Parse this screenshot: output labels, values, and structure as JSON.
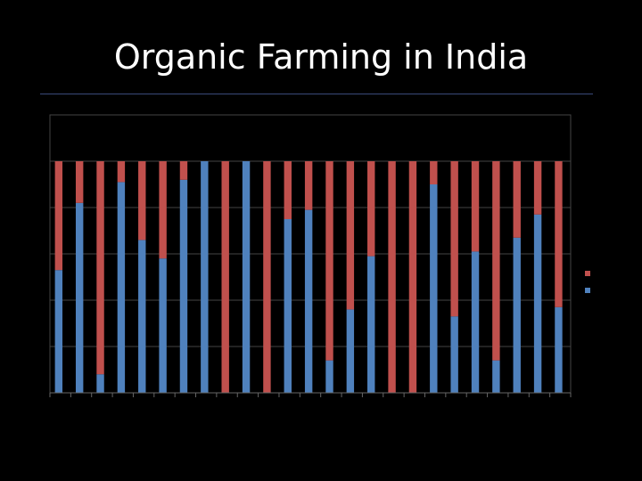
{
  "slide": {
    "title": "Organic Farming in India"
  },
  "chart_data": {
    "type": "bar",
    "stacked": "percent",
    "title": "Organic Farming in India",
    "xlabel": "",
    "ylabel": "",
    "ylim": [
      0,
      1.2
    ],
    "grid": true,
    "legend_position": "right",
    "series": [
      {
        "color": "#4f81bd",
        "values": [
          0.53,
          0.82,
          0.08,
          0.91,
          0.66,
          0.58,
          0.92,
          1.0,
          0.0,
          1.0,
          0.0,
          0.75,
          0.79,
          0.14,
          0.36,
          0.59,
          0.0,
          0.0,
          0.9,
          0.33,
          0.61,
          0.14,
          0.67,
          0.77,
          0.37
        ]
      },
      {
        "color": "#c0504d",
        "values": [
          0.47,
          0.18,
          0.92,
          0.09,
          0.34,
          0.42,
          0.08,
          0.0,
          1.0,
          0.0,
          1.0,
          0.25,
          0.21,
          0.86,
          0.64,
          0.41,
          1.0,
          1.0,
          0.1,
          0.67,
          0.39,
          0.86,
          0.33,
          0.23,
          0.63
        ]
      }
    ]
  }
}
